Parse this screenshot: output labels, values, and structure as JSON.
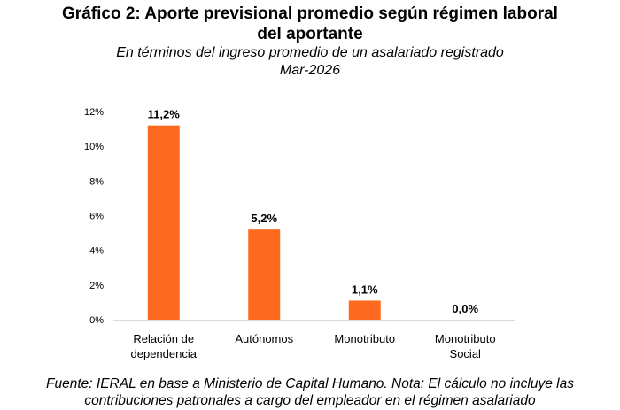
{
  "title_lines": [
    "Gráfico 2: Aporte previsional promedio según régimen laboral",
    "del aportante"
  ],
  "subtitle_lines": [
    "En términos del ingreso promedio de un asalariado registrado",
    "Mar-2026"
  ],
  "footer_lines": [
    "Fuente: IERAL en base a Ministerio de Capital Humano. Nota: El cálculo no incluye las",
    "contribuciones patronales a cargo del empleador en el régimen asalariado"
  ],
  "colors": {
    "bar": "#FF6A21",
    "axis": "#d9d9d9",
    "text": "#000000"
  },
  "chart_data": {
    "type": "bar",
    "categories": [
      [
        "Relación de",
        "dependencia"
      ],
      [
        "Autónomos"
      ],
      [
        "Monotributo"
      ],
      [
        "Monotributo",
        "Social"
      ]
    ],
    "values": [
      11.2,
      5.2,
      1.1,
      0.0
    ],
    "data_labels": [
      "11,2%",
      "5,2%",
      "1,1%",
      "0,0%"
    ],
    "ylim": [
      0,
      12
    ],
    "yticks": [
      0,
      2,
      4,
      6,
      8,
      10,
      12
    ],
    "ytick_labels": [
      "0%",
      "2%",
      "4%",
      "6%",
      "8%",
      "10%",
      "12%"
    ],
    "grid": false,
    "legend": "none"
  }
}
